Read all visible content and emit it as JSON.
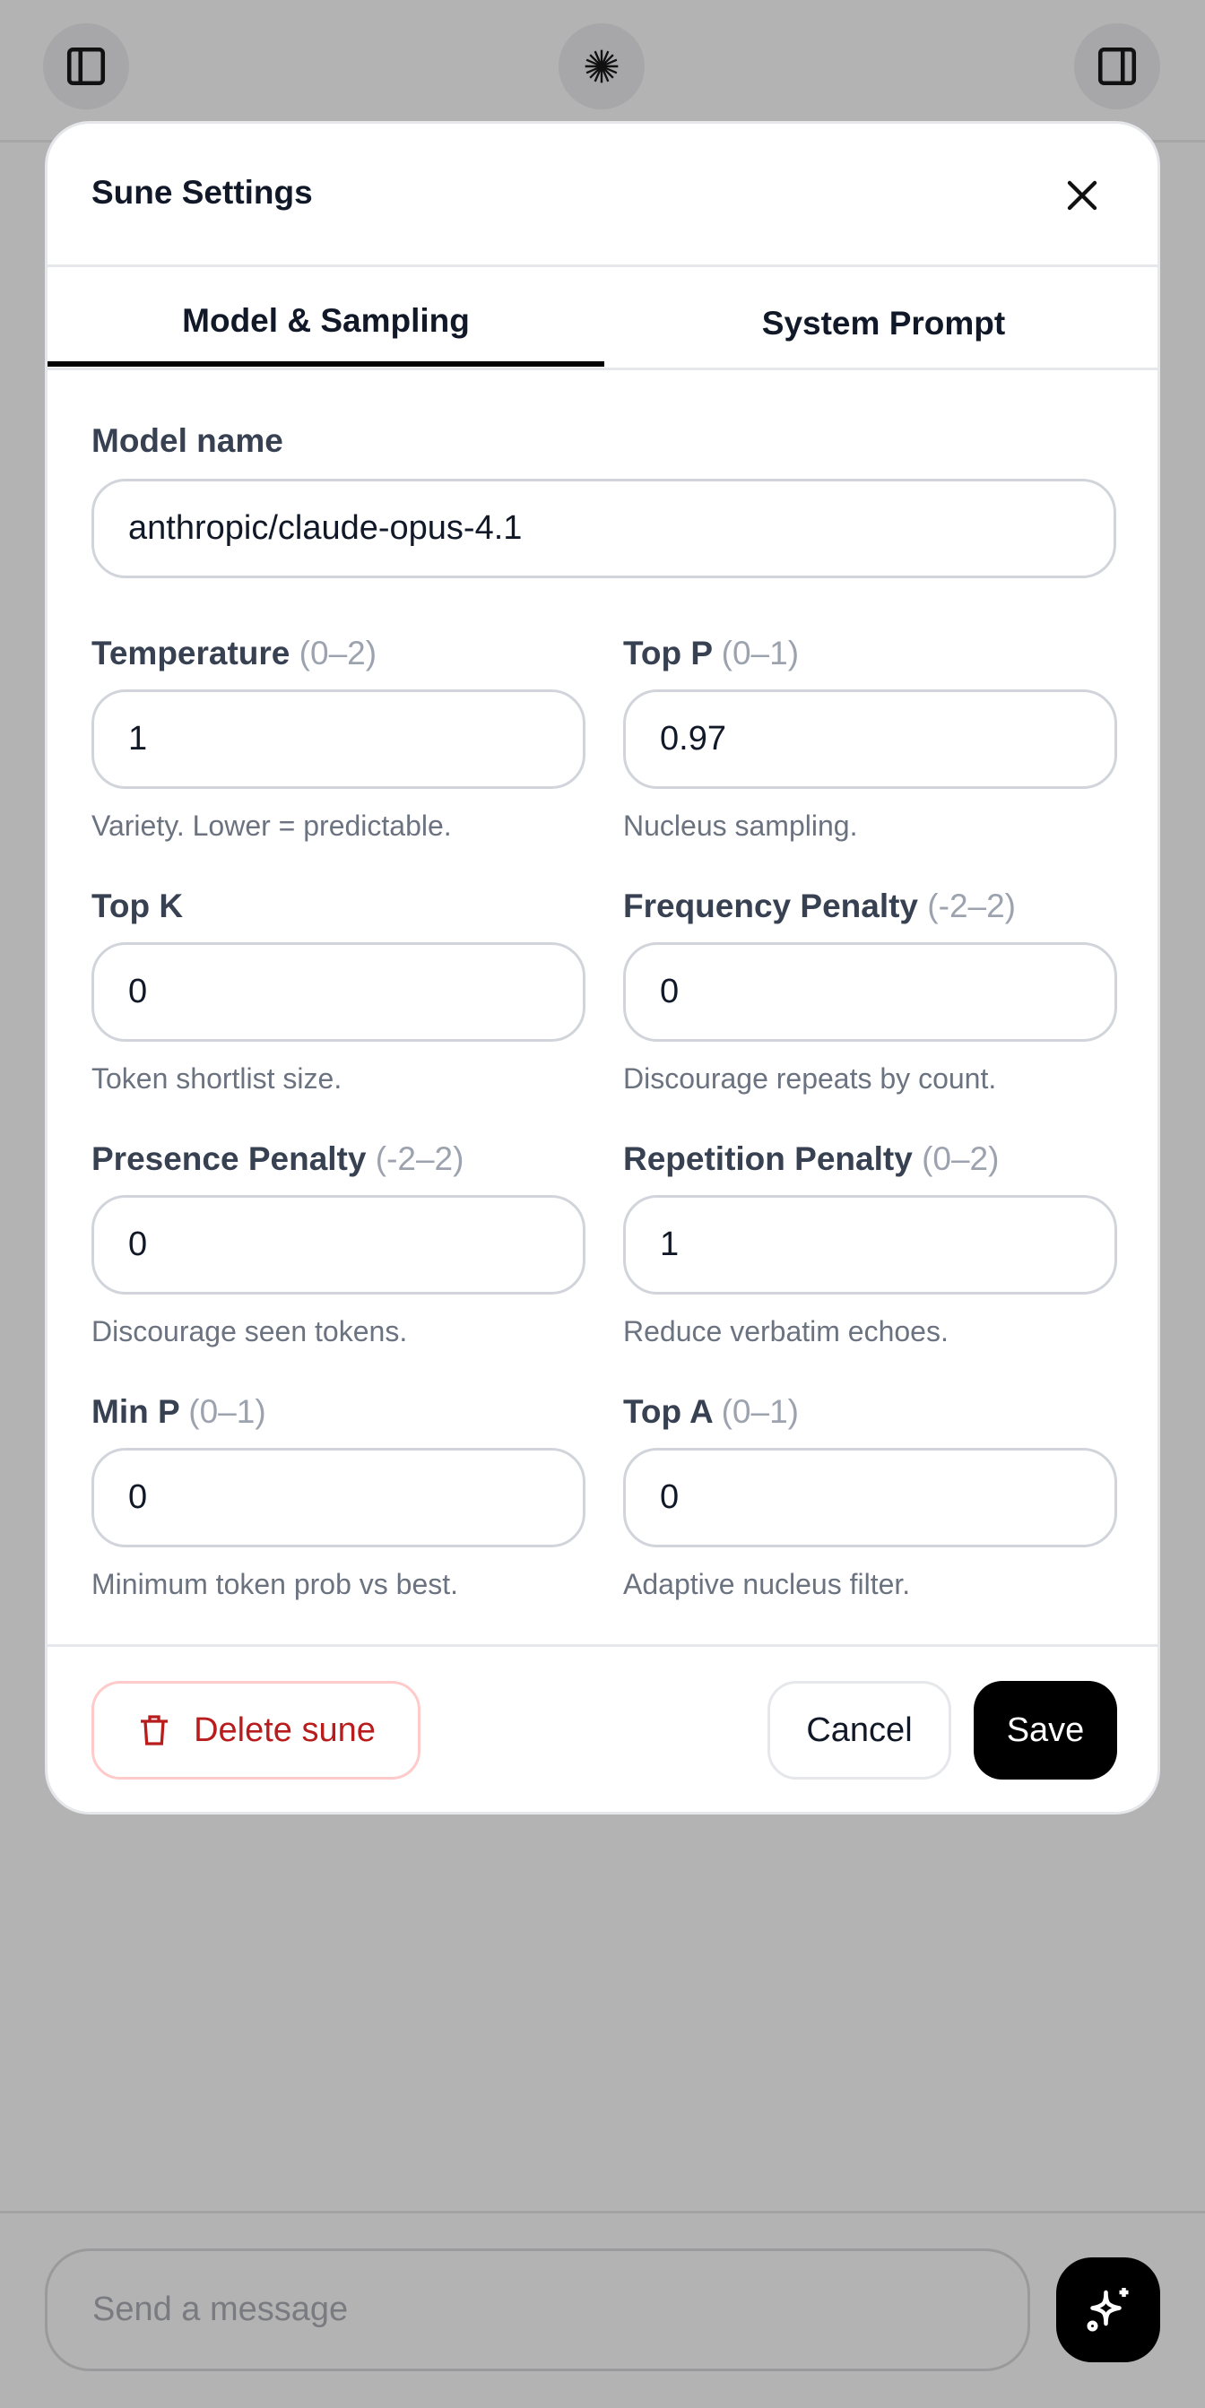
{
  "topbar": {
    "left_icon": "sidebar-left-icon",
    "center_icon": "starburst-icon",
    "right_icon": "sidebar-right-icon"
  },
  "modal": {
    "title": "Sune Settings",
    "tabs": [
      {
        "label": "Model & Sampling",
        "active": true
      },
      {
        "label": "System Prompt",
        "active": false
      }
    ],
    "model_name": {
      "label": "Model name",
      "value": "anthropic/claude-opus-4.1"
    },
    "fields": [
      {
        "label": "Temperature",
        "range": "(0–2)",
        "value": "1",
        "help": "Variety. Lower = predictable."
      },
      {
        "label": "Top P",
        "range": "(0–1)",
        "value": "0.97",
        "help": "Nucleus sampling."
      },
      {
        "label": "Top K",
        "range": "",
        "value": "0",
        "help": "Token shortlist size."
      },
      {
        "label": "Frequency Penalty",
        "range": "(-2–2)",
        "value": "0",
        "help": "Discourage repeats by count."
      },
      {
        "label": "Presence Penalty",
        "range": "(-2–2)",
        "value": "0",
        "help": "Discourage seen tokens."
      },
      {
        "label": "Repetition Penalty",
        "range": "(0–2)",
        "value": "1",
        "help": "Reduce verbatim echoes."
      },
      {
        "label": "Min P",
        "range": "(0–1)",
        "value": "0",
        "help": "Minimum token prob vs best."
      },
      {
        "label": "Top A",
        "range": "(0–1)",
        "value": "0",
        "help": "Adaptive nucleus filter."
      }
    ],
    "footer": {
      "delete_label": "Delete sune",
      "cancel_label": "Cancel",
      "save_label": "Save"
    },
    "colors": {
      "danger": "#b91c1c",
      "primary": "#000000"
    }
  },
  "composer": {
    "placeholder": "Send a message",
    "send_icon": "sparkles-icon"
  }
}
